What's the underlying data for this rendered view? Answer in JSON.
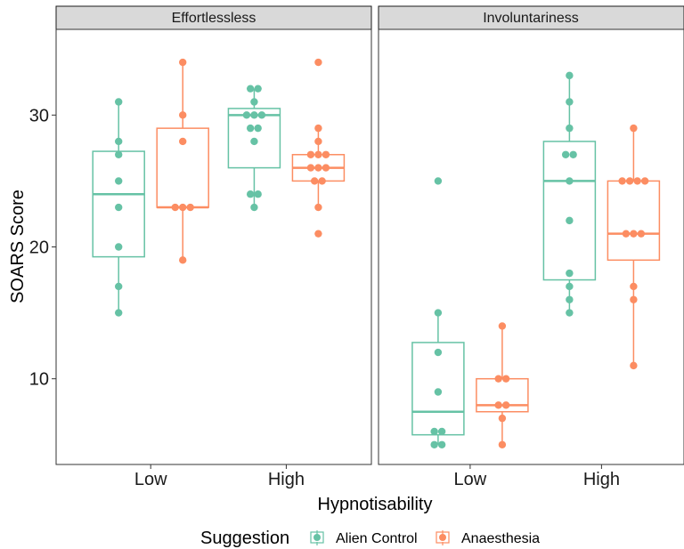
{
  "chart_data": {
    "type": "box",
    "facets": [
      "Effortlessless",
      "Involuntariness"
    ],
    "categories": [
      "Low",
      "High"
    ],
    "xlabel": "Hypnotisability",
    "ylabel": "SOARS Score",
    "ylim": [
      3.5,
      36.5
    ],
    "yticks": [
      10,
      20,
      30
    ],
    "legend": {
      "title": "Suggestion",
      "position": "bottom"
    },
    "groups": [
      "Alien Control",
      "Anaesthesia"
    ],
    "colors": {
      "Alien Control": "#66c2a5",
      "Anaesthesia": "#fc8d62"
    },
    "series": [
      {
        "facet": "Effortlessless",
        "category": "Low",
        "group": "Alien Control",
        "box": {
          "min": 15,
          "q1": 19.25,
          "median": 24,
          "q3": 27.25,
          "max": 31
        },
        "points": [
          31,
          28,
          27,
          25,
          23,
          20,
          17,
          15
        ]
      },
      {
        "facet": "Effortlessless",
        "category": "Low",
        "group": "Anaesthesia",
        "box": {
          "min": 19,
          "q1": 23,
          "median": 23,
          "q3": 29,
          "max": 34
        },
        "points": [
          34,
          30,
          28,
          23,
          23,
          23,
          19
        ]
      },
      {
        "facet": "Effortlessless",
        "category": "High",
        "group": "Alien Control",
        "box": {
          "min": 23,
          "q1": 26,
          "median": 30,
          "q3": 30.5,
          "max": 32
        },
        "points": [
          32,
          32,
          31,
          30,
          30,
          30,
          29,
          29,
          28,
          24,
          24,
          23
        ]
      },
      {
        "facet": "Effortlessless",
        "category": "High",
        "group": "Anaesthesia",
        "box": {
          "min": 23,
          "q1": 25,
          "median": 26,
          "q3": 27,
          "max": 29
        },
        "points": [
          34,
          29,
          28,
          27,
          27,
          27,
          26,
          26,
          26,
          25,
          25,
          23,
          21
        ]
      },
      {
        "facet": "Involuntariness",
        "category": "Low",
        "group": "Alien Control",
        "box": {
          "min": 5,
          "q1": 5.75,
          "median": 7.5,
          "q3": 12.75,
          "max": 15
        },
        "points": [
          25,
          15,
          12,
          9,
          6,
          6,
          5,
          5
        ]
      },
      {
        "facet": "Involuntariness",
        "category": "Low",
        "group": "Anaesthesia",
        "box": {
          "min": 5,
          "q1": 7.5,
          "median": 8,
          "q3": 10,
          "max": 14
        },
        "points": [
          14,
          10,
          10,
          8,
          8,
          7,
          5
        ]
      },
      {
        "facet": "Involuntariness",
        "category": "High",
        "group": "Alien Control",
        "box": {
          "min": 15,
          "q1": 17.5,
          "median": 25,
          "q3": 28,
          "max": 33
        },
        "points": [
          33,
          31,
          29,
          27,
          27,
          25,
          22,
          18,
          17,
          16,
          15
        ]
      },
      {
        "facet": "Involuntariness",
        "category": "High",
        "group": "Anaesthesia",
        "box": {
          "min": 11,
          "q1": 19,
          "median": 21,
          "q3": 25,
          "max": 29
        },
        "points": [
          29,
          25,
          25,
          25,
          25,
          21,
          21,
          21,
          17,
          16,
          11
        ]
      }
    ]
  }
}
